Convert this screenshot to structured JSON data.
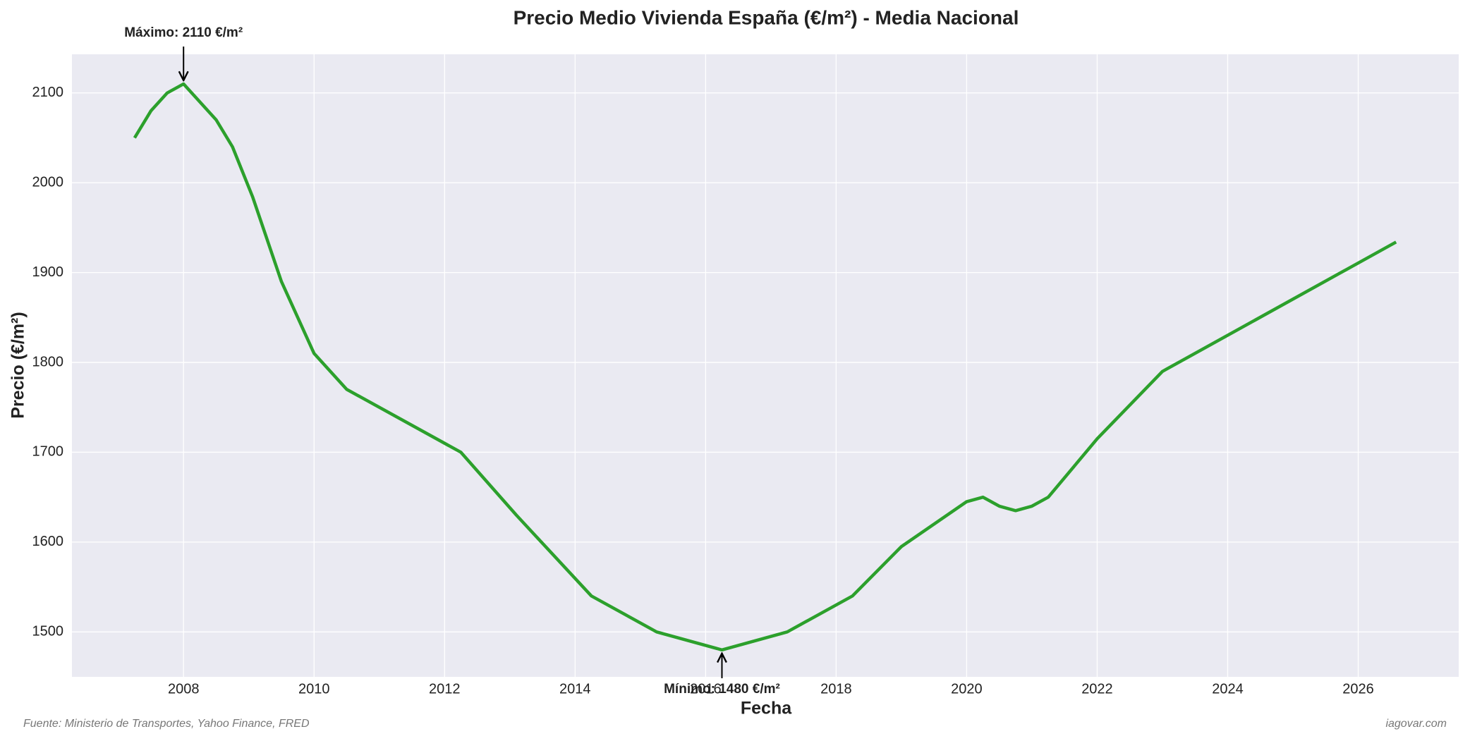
{
  "chart_data": {
    "type": "line",
    "title": "Precio Medio Vivienda España (€/m²) - Media Nacional",
    "x_label": "Fecha",
    "y_label": "Precio (€/m²)",
    "x": [
      2007.25,
      2007.5,
      2007.75,
      2008.0,
      2008.5,
      2008.75,
      2009.06,
      2009.5,
      2010.0,
      2010.5,
      2012.25,
      2013.1,
      2014.25,
      2015.25,
      2016.25,
      2017.25,
      2018.25,
      2019.0,
      2020.0,
      2020.25,
      2020.5,
      2020.75,
      2021.0,
      2021.25,
      2022.0,
      2023.0,
      2026.58
    ],
    "series": [
      {
        "name": "Precio",
        "color": "#2ca02c",
        "values": [
          2050,
          2080,
          2100,
          2110,
          2070,
          2040,
          1984,
          1890,
          1810,
          1770,
          1700,
          1630,
          1540,
          1500,
          1480,
          1500,
          1540,
          1595,
          1645,
          1650,
          1640,
          1635,
          1640,
          1650,
          1715,
          1790,
          1934
        ]
      }
    ],
    "xlim": [
      2006.29,
      2027.54
    ],
    "ylim": [
      1450,
      2143
    ],
    "xticks": [
      2008,
      2010,
      2012,
      2014,
      2016,
      2018,
      2020,
      2022,
      2024,
      2026
    ],
    "yticks": [
      1500,
      1600,
      1700,
      1800,
      1900,
      2000,
      2100
    ],
    "grid": true,
    "annotations": [
      {
        "text": "Máximo: 2110 €/m²",
        "at": "max"
      },
      {
        "text": "Mínimo: 1480 €/m²",
        "at": "min"
      }
    ],
    "source": "Fuente: Ministerio de Transportes, Yahoo Finance, FRED",
    "credit": "iagovar.com"
  }
}
